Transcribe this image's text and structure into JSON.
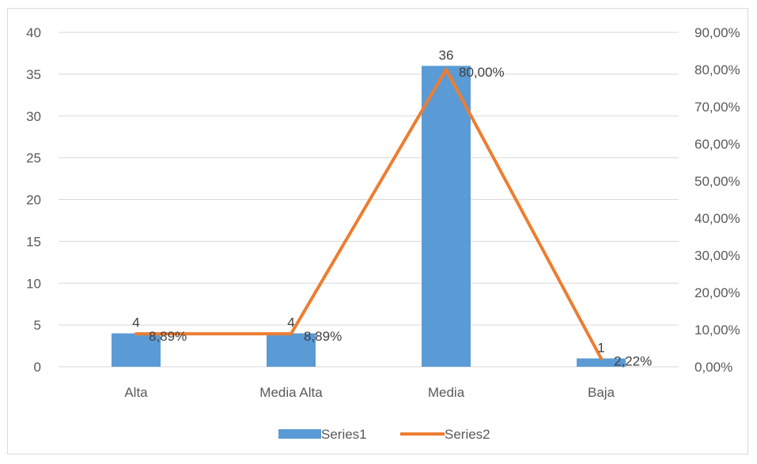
{
  "chart_data": {
    "type": "bar",
    "categories": [
      "Alta",
      "Media Alta",
      "Media",
      "Baja"
    ],
    "series": [
      {
        "name": "Series1",
        "type": "bar",
        "axis": "primary",
        "values": [
          4,
          4,
          36,
          1
        ],
        "data_labels": [
          "4",
          "4",
          "36",
          "1"
        ],
        "color": "#5b9bd5"
      },
      {
        "name": "Series2",
        "type": "line",
        "axis": "secondary",
        "values": [
          0.0889,
          0.0889,
          0.8,
          0.0222
        ],
        "data_labels": [
          "8,89%",
          "8,89%",
          "80,00%",
          "2,22%"
        ],
        "color": "#ed7d31"
      }
    ],
    "title": "",
    "xlabel": "",
    "ylabel": "",
    "ylim": [
      0,
      40
    ],
    "yticks": [
      "0",
      "5",
      "10",
      "15",
      "20",
      "25",
      "30",
      "35",
      "40"
    ],
    "y2lim": [
      0,
      0.9
    ],
    "y2ticks": [
      "0,00%",
      "10,00%",
      "20,00%",
      "30,00%",
      "40,00%",
      "50,00%",
      "60,00%",
      "70,00%",
      "80,00%",
      "90,00%"
    ],
    "grid": true,
    "legend_position": "bottom",
    "gridline_color": "#d9d9d9",
    "tick_text_color": "#595959"
  }
}
